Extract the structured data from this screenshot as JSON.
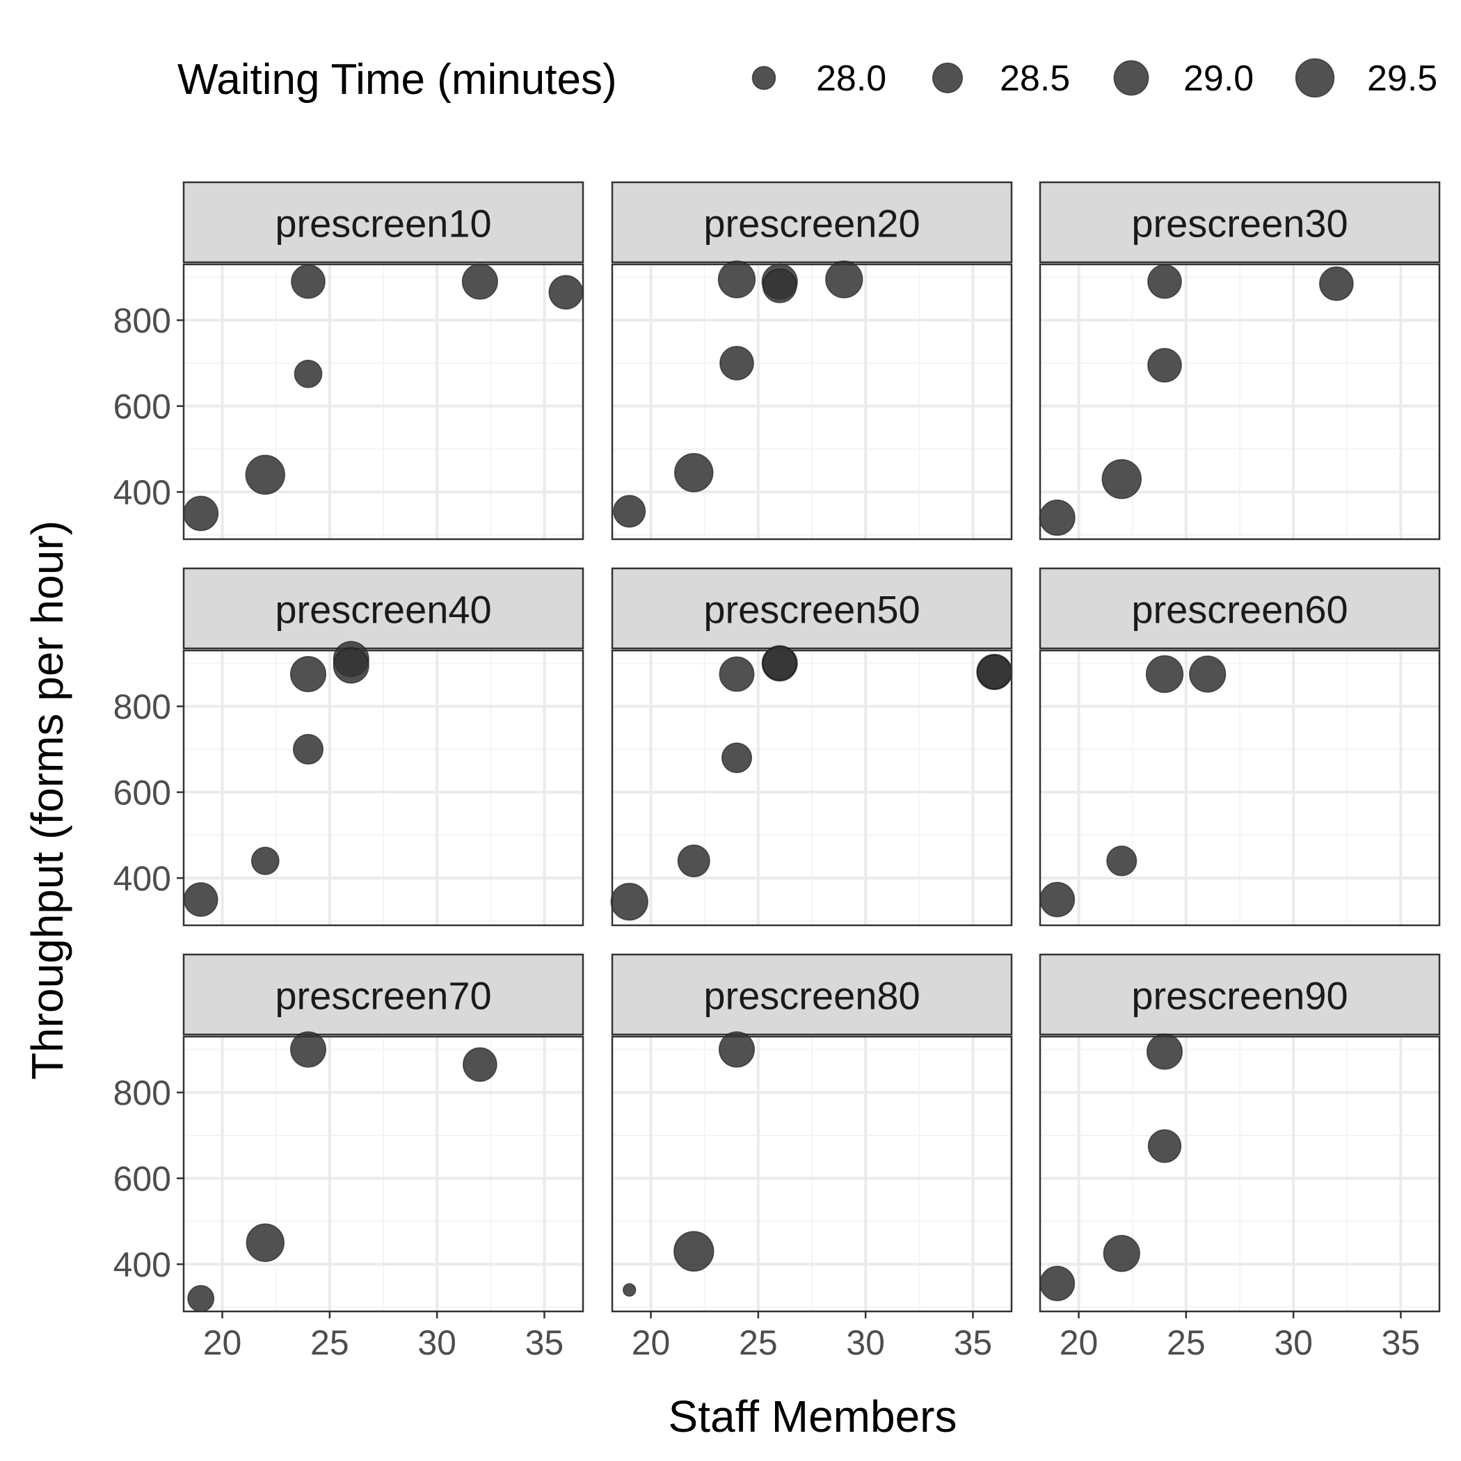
{
  "chart_data": {
    "type": "scatter",
    "xlabel": "Staff Members",
    "ylabel": "Throughput (forms per hour)",
    "xlim": [
      18.2,
      36.8
    ],
    "ylim": [
      290,
      930
    ],
    "x_ticks": [
      20,
      25,
      30,
      35
    ],
    "x_tick_labels": [
      "20",
      "25",
      "30",
      "35"
    ],
    "y_ticks": [
      400,
      600,
      800
    ],
    "y_tick_labels": [
      "400",
      "600",
      "800"
    ],
    "grid": true,
    "legend": {
      "title": "Waiting Time (minutes)",
      "position": "top",
      "items": [
        {
          "label": "28.0",
          "value": 28.0
        },
        {
          "label": "28.5",
          "value": 28.5
        },
        {
          "label": "29.0",
          "value": 29.0
        },
        {
          "label": "29.5",
          "value": 29.5
        }
      ]
    },
    "size_variable": "Waiting Time (minutes)",
    "size_range": [
      27.7,
      29.8
    ],
    "panels": [
      {
        "name": "prescreen10",
        "points": [
          {
            "x": 19,
            "y": 350,
            "w": 29.0
          },
          {
            "x": 22,
            "y": 440,
            "w": 29.6
          },
          {
            "x": 24,
            "y": 675,
            "w": 28.3
          },
          {
            "x": 24,
            "y": 890,
            "w": 28.9
          },
          {
            "x": 32,
            "y": 890,
            "w": 29.1
          },
          {
            "x": 36,
            "y": 865,
            "w": 28.9
          }
        ]
      },
      {
        "name": "prescreen20",
        "points": [
          {
            "x": 19,
            "y": 355,
            "w": 28.7
          },
          {
            "x": 22,
            "y": 445,
            "w": 29.5
          },
          {
            "x": 24,
            "y": 700,
            "w": 28.9
          },
          {
            "x": 24,
            "y": 895,
            "w": 29.3
          },
          {
            "x": 26,
            "y": 890,
            "w": 29.1
          },
          {
            "x": 26,
            "y": 880,
            "w": 28.9
          },
          {
            "x": 29,
            "y": 895,
            "w": 29.3
          }
        ]
      },
      {
        "name": "prescreen30",
        "points": [
          {
            "x": 19,
            "y": 340,
            "w": 29.1
          },
          {
            "x": 22,
            "y": 430,
            "w": 29.6
          },
          {
            "x": 24,
            "y": 695,
            "w": 28.9
          },
          {
            "x": 24,
            "y": 890,
            "w": 28.9
          },
          {
            "x": 32,
            "y": 885,
            "w": 28.9
          }
        ]
      },
      {
        "name": "prescreen40",
        "points": [
          {
            "x": 19,
            "y": 350,
            "w": 28.9
          },
          {
            "x": 22,
            "y": 440,
            "w": 28.3
          },
          {
            "x": 24,
            "y": 700,
            "w": 28.5
          },
          {
            "x": 24,
            "y": 875,
            "w": 29.1
          },
          {
            "x": 26,
            "y": 910,
            "w": 29.1
          },
          {
            "x": 26,
            "y": 895,
            "w": 29.1
          }
        ]
      },
      {
        "name": "prescreen50",
        "points": [
          {
            "x": 19,
            "y": 345,
            "w": 29.3
          },
          {
            "x": 22,
            "y": 440,
            "w": 28.7
          },
          {
            "x": 24,
            "y": 680,
            "w": 28.5
          },
          {
            "x": 24,
            "y": 875,
            "w": 29.0
          },
          {
            "x": 26,
            "y": 900,
            "w": 29.1
          },
          {
            "x": 26,
            "y": 900,
            "w": 28.9
          },
          {
            "x": 36,
            "y": 880,
            "w": 29.1
          },
          {
            "x": 36,
            "y": 880,
            "w": 28.9
          }
        ]
      },
      {
        "name": "prescreen60",
        "points": [
          {
            "x": 19,
            "y": 350,
            "w": 29.0
          },
          {
            "x": 22,
            "y": 440,
            "w": 28.5
          },
          {
            "x": 24,
            "y": 875,
            "w": 29.3
          },
          {
            "x": 26,
            "y": 875,
            "w": 29.2
          }
        ]
      },
      {
        "name": "prescreen70",
        "points": [
          {
            "x": 19,
            "y": 320,
            "w": 28.2
          },
          {
            "x": 22,
            "y": 450,
            "w": 29.4
          },
          {
            "x": 24,
            "y": 900,
            "w": 29.1
          },
          {
            "x": 32,
            "y": 865,
            "w": 28.9
          }
        ]
      },
      {
        "name": "prescreen80",
        "points": [
          {
            "x": 19,
            "y": 340,
            "w": 27.7
          },
          {
            "x": 22,
            "y": 430,
            "w": 29.7
          },
          {
            "x": 24,
            "y": 900,
            "w": 29.1
          }
        ]
      },
      {
        "name": "prescreen90",
        "points": [
          {
            "x": 19,
            "y": 355,
            "w": 29.0
          },
          {
            "x": 22,
            "y": 425,
            "w": 29.2
          },
          {
            "x": 24,
            "y": 675,
            "w": 28.8
          },
          {
            "x": 24,
            "y": 895,
            "w": 29.1
          }
        ]
      }
    ]
  },
  "colors": {
    "point_fill": "#333333",
    "point_opacity": 0.85,
    "panel_border": "#333333",
    "strip_fill": "#d9d9d9",
    "grid_major": "#ebebeb",
    "grid_minor": "#f4f4f4",
    "tick_text": "#4d4d4d",
    "title_text": "#000000"
  }
}
